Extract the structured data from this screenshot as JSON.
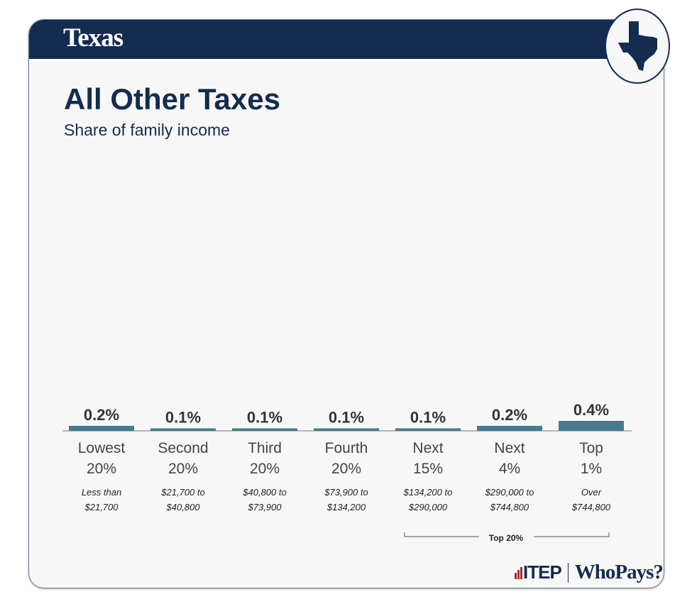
{
  "header": {
    "state": "Texas"
  },
  "chart_data": {
    "type": "bar",
    "title": "All Other Taxes",
    "subtitle": "Share of family income",
    "categories": [
      [
        "Lowest",
        "20%"
      ],
      [
        "Second",
        "20%"
      ],
      [
        "Third",
        "20%"
      ],
      [
        "Fourth",
        "20%"
      ],
      [
        "Next",
        "15%"
      ],
      [
        "Next",
        "4%"
      ],
      [
        "Top",
        "1%"
      ]
    ],
    "income_ranges": [
      [
        "Less than",
        "$21,700"
      ],
      [
        "$21,700 to",
        "$40,800"
      ],
      [
        "$40,800 to",
        "$73,900"
      ],
      [
        "$73,900 to",
        "$134,200"
      ],
      [
        "$134,200 to",
        "$290,000"
      ],
      [
        "$290,000 to",
        "$744,800"
      ],
      [
        "Over",
        "$744,800"
      ]
    ],
    "values": [
      0.2,
      0.1,
      0.1,
      0.1,
      0.1,
      0.2,
      0.4
    ],
    "labels": [
      "0.2%",
      "0.1%",
      "0.1%",
      "0.1%",
      "0.1%",
      "0.2%",
      "0.4%"
    ],
    "bracket_label": "Top 20%",
    "bar_color": "#477a8c"
  },
  "footer": {
    "itep": "ITEP",
    "whopays": "WhoPays?"
  }
}
